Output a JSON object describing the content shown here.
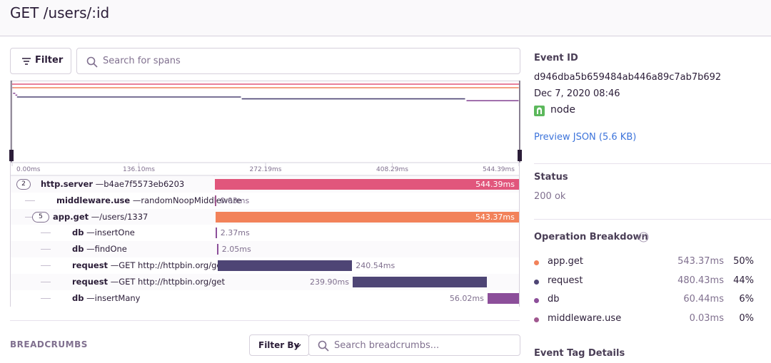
{
  "header": {
    "title": "GET /users/:id"
  },
  "toolbar": {
    "filter_button": "Filter",
    "search_placeholder": "Search for spans"
  },
  "timeline": {
    "range_ms": [
      0,
      544.39
    ],
    "ticks": [
      {
        "value": 0,
        "label": "0.00ms"
      },
      {
        "value": 136.1,
        "label": "136.10ms"
      },
      {
        "value": 272.19,
        "label": "272.19ms"
      },
      {
        "value": 408.29,
        "label": "408.29ms"
      },
      {
        "value": 544.39,
        "label": "544.39ms"
      }
    ]
  },
  "spans": [
    {
      "depth": 0,
      "children": 2,
      "op": "http.server",
      "description": "b4ae7f5573eb6203",
      "start_ms": 0,
      "duration_ms": 544.39,
      "duration_label": "544.39ms",
      "color": "#e1567c"
    },
    {
      "depth": 1,
      "op": "middleware.use",
      "description": "randomNoopMiddleware",
      "start_ms": 0.3,
      "duration_ms": 0.03,
      "duration_label": "0.03ms",
      "color": "#a0578f"
    },
    {
      "depth": 1,
      "children": 5,
      "op": "app.get",
      "description": "/users/1337",
      "start_ms": 0.8,
      "duration_ms": 543.37,
      "duration_label": "543.37ms",
      "color": "#f2825a"
    },
    {
      "depth": 2,
      "op": "db",
      "description": "insertOne",
      "start_ms": 1,
      "duration_ms": 2.37,
      "duration_label": "2.37ms",
      "color": "#8c4f9a"
    },
    {
      "depth": 2,
      "op": "db",
      "description": "findOne",
      "start_ms": 3.5,
      "duration_ms": 2.05,
      "duration_label": "2.05ms",
      "color": "#8c4f9a"
    },
    {
      "depth": 2,
      "op": "request",
      "description": "GET http://httpbin.org/get",
      "start_ms": 5.2,
      "duration_ms": 240.54,
      "duration_label": "240.54ms",
      "color": "#4e4575"
    },
    {
      "depth": 2,
      "op": "request",
      "description": "GET http://httpbin.org/get",
      "start_ms": 246.6,
      "duration_ms": 239.9,
      "duration_label": "239.90ms",
      "color": "#4e4575"
    },
    {
      "depth": 2,
      "op": "db",
      "description": "insertMany",
      "start_ms": 488,
      "duration_ms": 56.02,
      "duration_label": "56.02ms",
      "color": "#8c4f9a"
    }
  ],
  "breadcrumbs": {
    "title": "BREADCRUMBS",
    "filter_by": "Filter By",
    "search_placeholder": "Search breadcrumbs..."
  },
  "sidebar": {
    "event_id_label": "Event ID",
    "event_id": "d946dba5b659484ab446a89c7ab7b692",
    "date": "Dec 7, 2020 08:46",
    "platform": "node",
    "preview_link": "Preview JSON (5.6 KB)",
    "status_label": "Status",
    "status": "200 ok",
    "breakdown_label": "Operation Breakdown",
    "breakdown": [
      {
        "name": "app.get",
        "duration": "543.37ms",
        "percent": "50%",
        "color": "#f2825a"
      },
      {
        "name": "request",
        "duration": "480.43ms",
        "percent": "44%",
        "color": "#4e4575"
      },
      {
        "name": "db",
        "duration": "60.44ms",
        "percent": "6%",
        "color": "#8c4f9a"
      },
      {
        "name": "middleware.use",
        "duration": "0.03ms",
        "percent": "0%",
        "color": "#a0578f"
      }
    ],
    "tags_label": "Event Tag Details"
  }
}
